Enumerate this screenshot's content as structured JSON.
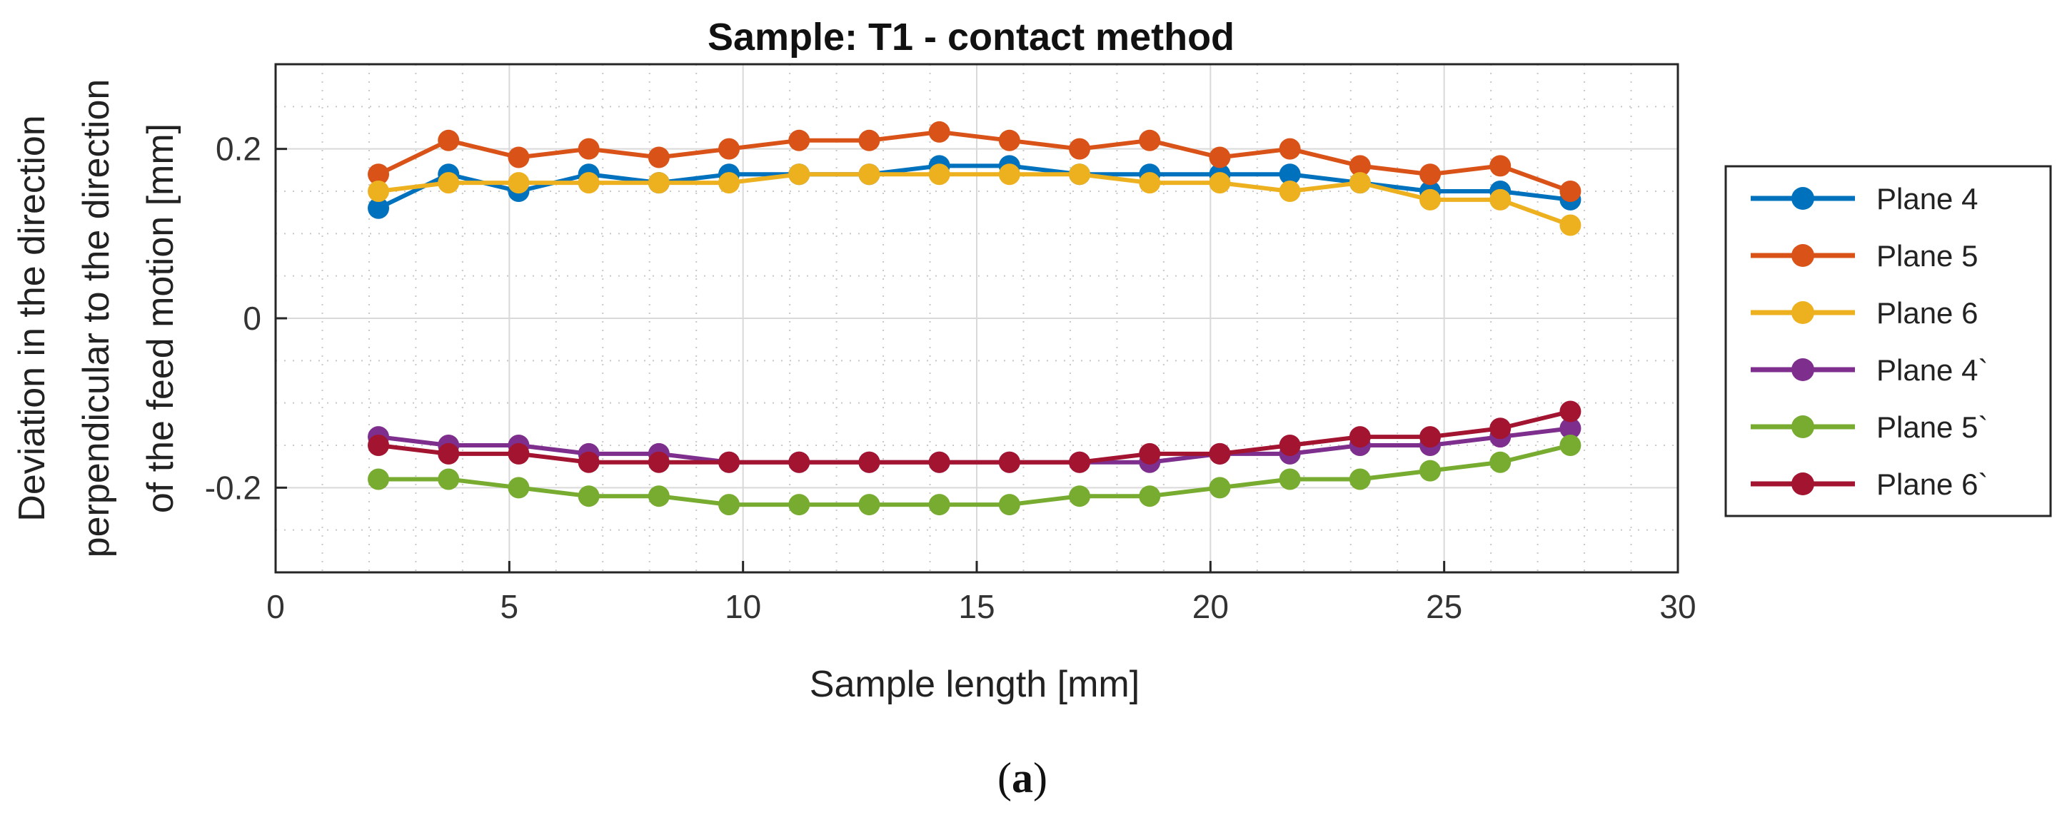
{
  "chart_data": {
    "type": "line",
    "title": "Sample: T1 - contact method",
    "xlabel": "Sample length [mm]",
    "ylabel_lines": [
      "Deviation in the direction",
      "perpendicular to the direction",
      "of the feed motion [mm]"
    ],
    "xlim": [
      0,
      30
    ],
    "ylim": [
      -0.3,
      0.3
    ],
    "xticks": [
      0,
      5,
      10,
      15,
      20,
      25,
      30
    ],
    "xtick_labels": [
      "0",
      "5",
      "10",
      "15",
      "20",
      "25",
      "30"
    ],
    "yticks": [
      -0.2,
      0,
      0.2
    ],
    "ytick_labels": [
      "-0.2",
      "0",
      "0.2"
    ],
    "grid": true,
    "legend_position": "outside-right",
    "x": [
      2.2,
      3.7,
      5.2,
      6.7,
      8.2,
      9.7,
      11.2,
      12.7,
      14.2,
      15.7,
      17.2,
      18.7,
      20.2,
      21.7,
      23.2,
      24.7,
      26.2,
      27.7
    ],
    "series": [
      {
        "name": "Plane 4",
        "color": "#0072BD",
        "values": [
          0.13,
          0.17,
          0.15,
          0.17,
          0.16,
          0.17,
          0.17,
          0.17,
          0.18,
          0.18,
          0.17,
          0.17,
          0.17,
          0.17,
          0.16,
          0.15,
          0.15,
          0.14
        ]
      },
      {
        "name": "Plane 5",
        "color": "#D95319",
        "values": [
          0.17,
          0.21,
          0.19,
          0.2,
          0.19,
          0.2,
          0.21,
          0.21,
          0.22,
          0.21,
          0.2,
          0.21,
          0.19,
          0.2,
          0.18,
          0.17,
          0.18,
          0.15
        ]
      },
      {
        "name": "Plane 6",
        "color": "#EDB120",
        "values": [
          0.15,
          0.16,
          0.16,
          0.16,
          0.16,
          0.16,
          0.17,
          0.17,
          0.17,
          0.17,
          0.17,
          0.16,
          0.16,
          0.15,
          0.16,
          0.14,
          0.14,
          0.11
        ]
      },
      {
        "name": "Plane 4`",
        "color": "#7E2F8E",
        "values": [
          -0.14,
          -0.15,
          -0.15,
          -0.16,
          -0.16,
          -0.17,
          -0.17,
          -0.17,
          -0.17,
          -0.17,
          -0.17,
          -0.17,
          -0.16,
          -0.16,
          -0.15,
          -0.15,
          -0.14,
          -0.13
        ]
      },
      {
        "name": "Plane 5`",
        "color": "#77AC30",
        "values": [
          -0.19,
          -0.19,
          -0.2,
          -0.21,
          -0.21,
          -0.22,
          -0.22,
          -0.22,
          -0.22,
          -0.22,
          -0.21,
          -0.21,
          -0.2,
          -0.19,
          -0.19,
          -0.18,
          -0.17,
          -0.15
        ]
      },
      {
        "name": "Plane 6`",
        "color": "#A2142F",
        "values": [
          -0.15,
          -0.16,
          -0.16,
          -0.17,
          -0.17,
          -0.17,
          -0.17,
          -0.17,
          -0.17,
          -0.17,
          -0.17,
          -0.16,
          -0.16,
          -0.15,
          -0.14,
          -0.14,
          -0.13,
          -0.11
        ]
      }
    ]
  },
  "caption": {
    "open": "(",
    "letter": "a",
    "close": ")"
  }
}
